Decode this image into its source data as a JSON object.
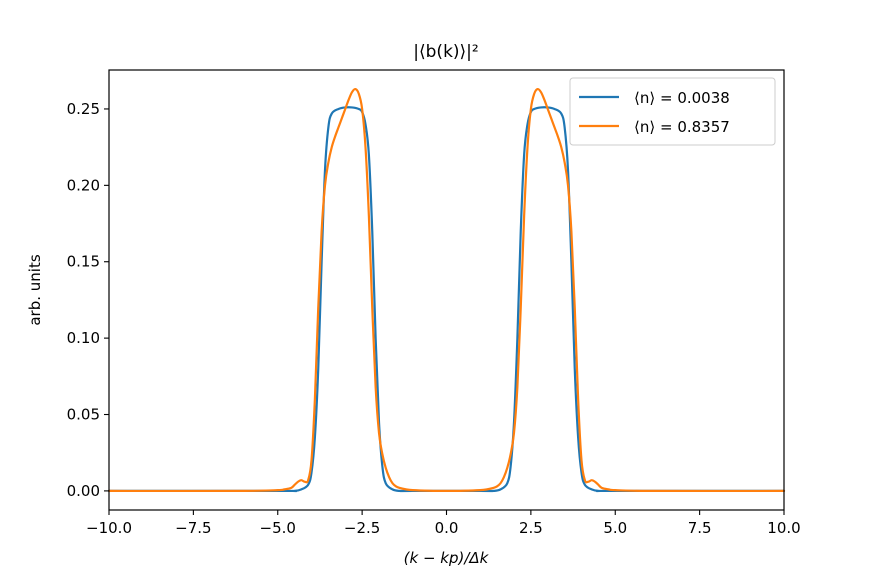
{
  "chart_data": {
    "type": "line",
    "title": "|⟨b(k)⟩|²",
    "xlabel": "(k − kp)/Δk",
    "ylabel": "arb. units",
    "xlim": [
      -10,
      10
    ],
    "ylim": [
      -0.0125,
      0.2755
    ],
    "xticks": [
      -10.0,
      -7.5,
      -5.0,
      -2.5,
      0.0,
      2.5,
      5.0,
      7.5,
      10.0
    ],
    "xtick_labels": [
      "−10.0",
      "−7.5",
      "−5.0",
      "−2.5",
      "0.0",
      "2.5",
      "5.0",
      "7.5",
      "10.0"
    ],
    "yticks": [
      0.0,
      0.05,
      0.1,
      0.15,
      0.2,
      0.25
    ],
    "ytick_labels": [
      "0.00",
      "0.05",
      "0.10",
      "0.15",
      "0.20",
      "0.25"
    ],
    "grid": false,
    "legend_position": "top-right",
    "series": [
      {
        "name": "⟨n⟩ = 0.0038",
        "color": "#1f77b4",
        "x": [
          -10.0,
          -5.0,
          -4.5,
          -4.3,
          -4.1,
          -4.0,
          -3.9,
          -3.8,
          -3.7,
          -3.6,
          -3.5,
          -3.4,
          -3.2,
          -3.0,
          -2.8,
          -2.6,
          -2.5,
          -2.4,
          -2.3,
          -2.2,
          -2.1,
          -2.0,
          -1.9,
          -1.8,
          -1.6,
          -1.4,
          -1.0,
          1.0,
          1.4,
          1.6,
          1.8,
          1.9,
          2.0,
          2.1,
          2.2,
          2.3,
          2.4,
          2.5,
          2.6,
          2.8,
          3.0,
          3.2,
          3.4,
          3.5,
          3.6,
          3.7,
          3.8,
          3.9,
          4.0,
          4.1,
          4.3,
          4.5,
          5.0,
          10.0
        ],
        "y": [
          0.0,
          0.0,
          0.0,
          0.001,
          0.004,
          0.012,
          0.035,
          0.08,
          0.15,
          0.21,
          0.238,
          0.247,
          0.25,
          0.251,
          0.251,
          0.25,
          0.248,
          0.24,
          0.22,
          0.17,
          0.1,
          0.045,
          0.016,
          0.005,
          0.001,
          0.0,
          0.0,
          0.0,
          0.0,
          0.001,
          0.005,
          0.016,
          0.045,
          0.1,
          0.17,
          0.22,
          0.24,
          0.248,
          0.25,
          0.251,
          0.251,
          0.25,
          0.247,
          0.238,
          0.21,
          0.15,
          0.08,
          0.035,
          0.012,
          0.004,
          0.001,
          0.0,
          0.0,
          0.0
        ]
      },
      {
        "name": "⟨n⟩ = 0.8357",
        "color": "#ff7f0e",
        "x": [
          -10.0,
          -6.0,
          -5.0,
          -4.8,
          -4.6,
          -4.5,
          -4.4,
          -4.3,
          -4.2,
          -4.1,
          -4.0,
          -3.9,
          -3.8,
          -3.7,
          -3.6,
          -3.5,
          -3.4,
          -3.3,
          -3.2,
          -3.1,
          -3.0,
          -2.9,
          -2.8,
          -2.7,
          -2.6,
          -2.5,
          -2.4,
          -2.3,
          -2.2,
          -2.1,
          -2.0,
          -1.9,
          -1.8,
          -1.7,
          -1.6,
          -1.5,
          -1.4,
          -1.2,
          -1.0,
          -0.5,
          0.0,
          0.5,
          1.0,
          1.2,
          1.4,
          1.5,
          1.6,
          1.7,
          1.8,
          1.9,
          2.0,
          2.1,
          2.2,
          2.3,
          2.4,
          2.5,
          2.6,
          2.7,
          2.8,
          2.9,
          3.0,
          3.1,
          3.2,
          3.3,
          3.4,
          3.5,
          3.6,
          3.7,
          3.8,
          3.9,
          4.0,
          4.1,
          4.2,
          4.3,
          4.4,
          4.5,
          4.6,
          4.8,
          5.0,
          6.0,
          10.0
        ],
        "y": [
          0.0,
          0.0,
          0.0005,
          0.001,
          0.002,
          0.004,
          0.006,
          0.007,
          0.006,
          0.007,
          0.02,
          0.06,
          0.12,
          0.17,
          0.2,
          0.215,
          0.225,
          0.232,
          0.238,
          0.244,
          0.25,
          0.256,
          0.261,
          0.263,
          0.26,
          0.25,
          0.225,
          0.18,
          0.12,
          0.068,
          0.038,
          0.024,
          0.015,
          0.009,
          0.005,
          0.003,
          0.002,
          0.001,
          0.0005,
          0.0001,
          0.0,
          0.0001,
          0.0005,
          0.001,
          0.002,
          0.003,
          0.005,
          0.009,
          0.015,
          0.024,
          0.038,
          0.068,
          0.12,
          0.18,
          0.225,
          0.25,
          0.26,
          0.263,
          0.261,
          0.256,
          0.25,
          0.244,
          0.238,
          0.232,
          0.225,
          0.215,
          0.2,
          0.17,
          0.12,
          0.06,
          0.02,
          0.007,
          0.006,
          0.007,
          0.006,
          0.004,
          0.002,
          0.001,
          0.0005,
          0.0,
          0.0
        ]
      }
    ]
  }
}
